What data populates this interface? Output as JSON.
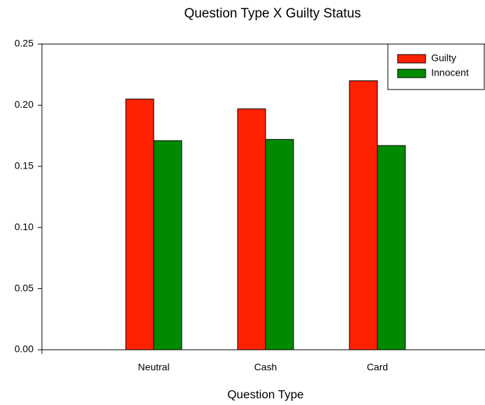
{
  "chart_data": {
    "type": "bar",
    "title": "Question Type X Guilty Status",
    "x_label": "Question Type",
    "categories": [
      "Neutral",
      "Cash",
      "Card"
    ],
    "series": [
      {
        "name": "Guilty",
        "color": "#ff2200",
        "values": [
          0.205,
          0.197,
          0.22
        ]
      },
      {
        "name": "Innocent",
        "color": "#008a00",
        "values": [
          0.171,
          0.172,
          0.167
        ]
      }
    ],
    "ylim": [
      0,
      0.25
    ],
    "yticks": [
      {
        "value": 0,
        "label": "0.00"
      },
      {
        "value": 0.05,
        "label": "0.05"
      },
      {
        "value": 0.1,
        "label": "0.10"
      },
      {
        "value": 0.15,
        "label": "0.15"
      },
      {
        "value": 0.2,
        "label": "0.20"
      },
      {
        "value": 0.25,
        "label": "0.25"
      }
    ],
    "legend": "upper right"
  }
}
